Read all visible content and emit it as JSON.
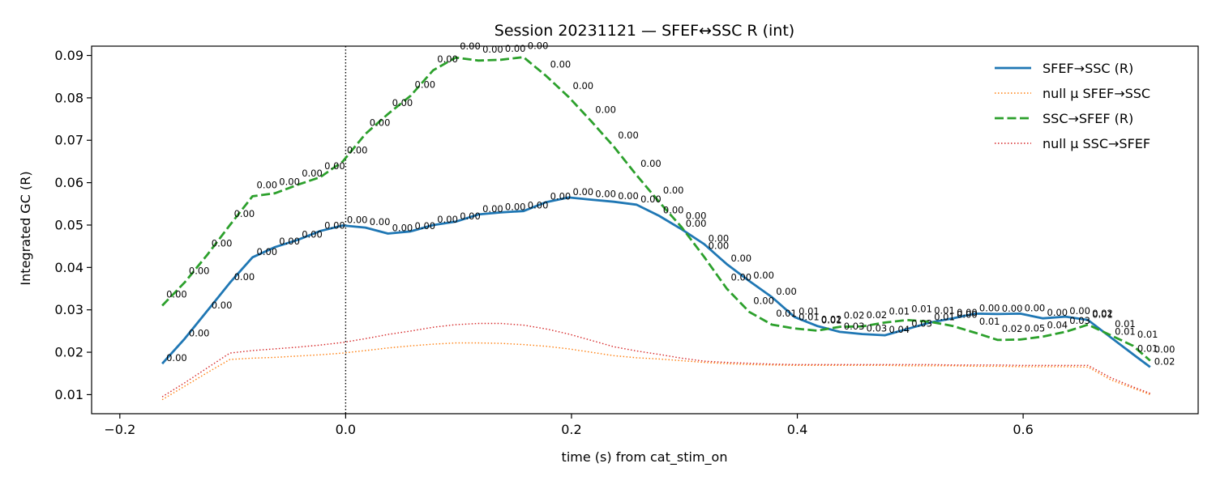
{
  "chart_data": {
    "type": "line",
    "title": "Session 20231121 — SFEF↔SSC R (int)",
    "xlabel": "time (s) from cat_stim_on",
    "ylabel": "Integrated GC (R)",
    "xlim": [
      -0.225,
      0.755
    ],
    "ylim": [
      0.0055,
      0.0922
    ],
    "xticks": [
      -0.2,
      0.0,
      0.2,
      0.4,
      0.6
    ],
    "xtick_labels": [
      "−0.2",
      "0.0",
      "0.2",
      "0.4",
      "0.6"
    ],
    "yticks": [
      0.01,
      0.02,
      0.03,
      0.04,
      0.05,
      0.06,
      0.07,
      0.08,
      0.09
    ],
    "ytick_labels": [
      "0.01",
      "0.02",
      "0.03",
      "0.04",
      "0.05",
      "0.06",
      "0.07",
      "0.08",
      "0.09"
    ],
    "grid": false,
    "legend_position": "top-right",
    "vline": {
      "x": 0.0,
      "style": "dotted",
      "color": "#000000"
    },
    "x": [
      -0.1625,
      -0.1425,
      -0.1225,
      -0.1025,
      -0.0825,
      -0.0625,
      -0.0425,
      -0.0225,
      -0.0025,
      0.0175,
      0.0375,
      0.0575,
      0.0775,
      0.0975,
      0.1175,
      0.1375,
      0.1575,
      0.1775,
      0.1975,
      0.2175,
      0.2375,
      0.2575,
      0.2775,
      0.2975,
      0.3175,
      0.3375,
      0.3575,
      0.3775,
      0.3975,
      0.4175,
      0.4375,
      0.4575,
      0.4775,
      0.4975,
      0.5175,
      0.5375,
      0.5575,
      0.5775,
      0.5975,
      0.6175,
      0.6375,
      0.6575,
      0.6775,
      0.6975,
      0.7125
    ],
    "series": [
      {
        "name": "SFEF→SSC (R)",
        "color": "#1f77b4",
        "style": "solid",
        "values": [
          0.0173,
          0.0232,
          0.0298,
          0.0364,
          0.0424,
          0.0448,
          0.0465,
          0.0486,
          0.0499,
          0.0494,
          0.048,
          0.0485,
          0.05,
          0.0508,
          0.0525,
          0.053,
          0.0533,
          0.0554,
          0.0565,
          0.056,
          0.0555,
          0.0548,
          0.0522,
          0.049,
          0.0455,
          0.0408,
          0.0368,
          0.033,
          0.0283,
          0.0262,
          0.0248,
          0.0243,
          0.024,
          0.0255,
          0.027,
          0.028,
          0.0291,
          0.029,
          0.0291,
          0.028,
          0.0284,
          0.0276,
          0.0235,
          0.0195,
          0.0165
        ],
        "point_labels": [
          "0.00",
          "0.00",
          "0.00",
          "0.00",
          "0.00",
          "0.00",
          "0.00",
          "0.00",
          "0.00",
          "0.00",
          "0.00",
          "0.00",
          "0.00",
          "0.00",
          "0.00",
          "0.00",
          "0.00",
          "0.00",
          "0.00",
          "0.00",
          "0.00",
          "0.00",
          "0.00",
          "0.00",
          "0.00",
          "0.00",
          "0.00",
          "0.00",
          "0.01",
          "0.01",
          "0.03",
          "0.03",
          "0.04",
          "0.03",
          "0.01",
          "0.00",
          "0.00",
          "0.00",
          "0.00",
          "0.00",
          "0.00",
          "0.01",
          "0.01",
          "0.01",
          "0.02"
        ]
      },
      {
        "name": "null μ SFEF→SSC",
        "color": "#ff7f0e",
        "style": "dotted",
        "values": [
          0.0088,
          0.012,
          0.0152,
          0.0183,
          0.0186,
          0.0188,
          0.0191,
          0.0194,
          0.0198,
          0.0204,
          0.021,
          0.0215,
          0.0219,
          0.0222,
          0.0222,
          0.0221,
          0.0218,
          0.0214,
          0.0208,
          0.02,
          0.0192,
          0.0187,
          0.0184,
          0.018,
          0.0176,
          0.0173,
          0.0171,
          0.017,
          0.0169,
          0.0169,
          0.0169,
          0.0169,
          0.0169,
          0.0168,
          0.0168,
          0.0168,
          0.0167,
          0.0167,
          0.0166,
          0.0166,
          0.0166,
          0.0165,
          0.0135,
          0.0115,
          0.01
        ]
      },
      {
        "name": "SSC→SFEF (R)",
        "color": "#2ca02c",
        "style": "dashed",
        "values": [
          0.031,
          0.0365,
          0.043,
          0.05,
          0.0568,
          0.0575,
          0.0595,
          0.0613,
          0.065,
          0.0715,
          0.0762,
          0.0805,
          0.0865,
          0.0895,
          0.0888,
          0.089,
          0.0896,
          0.0852,
          0.0802,
          0.0745,
          0.0685,
          0.0618,
          0.0555,
          0.0495,
          0.0425,
          0.035,
          0.0295,
          0.0265,
          0.0256,
          0.0251,
          0.026,
          0.0261,
          0.027,
          0.0276,
          0.0272,
          0.0262,
          0.0246,
          0.0229,
          0.023,
          0.0237,
          0.0248,
          0.0265,
          0.024,
          0.0215,
          0.018
        ],
        "point_labels": [
          "0.00",
          "0.00",
          "0.00",
          "0.00",
          "0.00",
          "0.00",
          "0.00",
          "0.00",
          "0.00",
          "0.00",
          "0.00",
          "0.00",
          "0.00",
          "0.00",
          "0.00",
          "0.00",
          "0.00",
          "0.00",
          "0.00",
          "0.00",
          "0.00",
          "0.00",
          "0.00",
          "0.00",
          "0.00",
          "0.00",
          "0.00",
          "0.01",
          "0.01",
          "0.02",
          "0.02",
          "0.02",
          "0.01",
          "0.01",
          "0.01",
          "0.00",
          "0.01",
          "0.02",
          "0.05",
          "0.04",
          "0.03",
          "0.02",
          "0.01",
          "0.01",
          "0.00"
        ]
      },
      {
        "name": "null μ SSC→SFEF",
        "color": "#d62728",
        "style": "dotted",
        "values": [
          0.0095,
          0.0128,
          0.0163,
          0.0198,
          0.0204,
          0.0208,
          0.0212,
          0.0217,
          0.0223,
          0.0232,
          0.0242,
          0.025,
          0.0259,
          0.0265,
          0.0268,
          0.0268,
          0.0264,
          0.0255,
          0.0243,
          0.0228,
          0.0213,
          0.0203,
          0.0195,
          0.0186,
          0.0179,
          0.0176,
          0.0174,
          0.0172,
          0.0171,
          0.0171,
          0.0171,
          0.0171,
          0.0171,
          0.0171,
          0.0171,
          0.017,
          0.017,
          0.017,
          0.0169,
          0.0169,
          0.0169,
          0.0169,
          0.014,
          0.0118,
          0.0103
        ]
      }
    ]
  }
}
